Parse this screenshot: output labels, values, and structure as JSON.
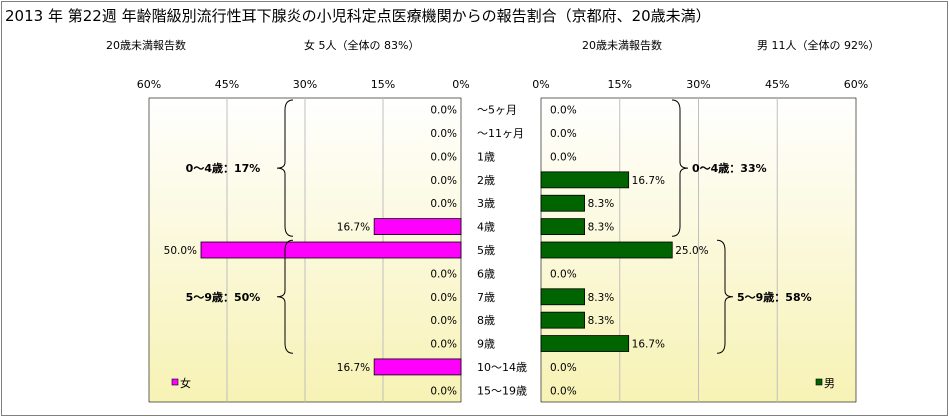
{
  "title": "2013 年 第22週 年齢階級別流行性耳下腺炎の小児科定点医療機関からの報告割合（京都府、20歳未満）",
  "left_header": {
    "label": "20歳未満報告数",
    "summary": "女 5人（全体の 83%）"
  },
  "right_header": {
    "label": "20歳未満報告数",
    "summary": "男 11人（全体の 92%）"
  },
  "colors": {
    "female": "#ff00ff",
    "male": "#006400",
    "plot_bg_top": "#ffffff",
    "plot_bg_bottom": "#f7f2b4",
    "grid": "#bfbfbf"
  },
  "chart_data": [
    {
      "type": "bar",
      "orientation": "horizontal",
      "direction": "right-to-left",
      "categories": [
        "～5ヶ月",
        "～11ヶ月",
        "1歳",
        "2歳",
        "3歳",
        "4歳",
        "5歳",
        "6歳",
        "7歳",
        "8歳",
        "9歳",
        "10～14歳",
        "15～19歳"
      ],
      "series": [
        {
          "name": "女",
          "values": [
            0.0,
            0.0,
            0.0,
            0.0,
            0.0,
            16.7,
            50.0,
            0.0,
            0.0,
            0.0,
            0.0,
            16.7,
            0.0
          ]
        }
      ],
      "value_labels": [
        "0.0%",
        "0.0%",
        "0.0%",
        "0.0%",
        "0.0%",
        "16.7%",
        "50.0%",
        "0.0%",
        "0.0%",
        "0.0%",
        "0.0%",
        "16.7%",
        "0.0%"
      ],
      "xlim": [
        0,
        60
      ],
      "xticks": [
        "60%",
        "45%",
        "30%",
        "15%",
        "0%"
      ],
      "legend": "bottom-left",
      "annotations": [
        {
          "text": "0～4歳：17%",
          "span": [
            "～5ヶ月",
            "4歳"
          ]
        },
        {
          "text": "5～9歳：50%",
          "span": [
            "5歳",
            "9歳"
          ]
        }
      ]
    },
    {
      "type": "bar",
      "orientation": "horizontal",
      "direction": "left-to-right",
      "categories": [
        "～5ヶ月",
        "～11ヶ月",
        "1歳",
        "2歳",
        "3歳",
        "4歳",
        "5歳",
        "6歳",
        "7歳",
        "8歳",
        "9歳",
        "10～14歳",
        "15～19歳"
      ],
      "series": [
        {
          "name": "男",
          "values": [
            0.0,
            0.0,
            0.0,
            16.7,
            8.3,
            8.3,
            25.0,
            0.0,
            8.3,
            8.3,
            16.7,
            0.0,
            0.0
          ]
        }
      ],
      "value_labels": [
        "0.0%",
        "0.0%",
        "0.0%",
        "16.7%",
        "8.3%",
        "8.3%",
        "25.0%",
        "0.0%",
        "8.3%",
        "8.3%",
        "16.7%",
        "0.0%",
        "0.0%"
      ],
      "xlim": [
        0,
        60
      ],
      "xticks": [
        "0%",
        "15%",
        "30%",
        "45%",
        "60%"
      ],
      "legend": "bottom-right",
      "annotations": [
        {
          "text": "0～4歳：33%",
          "span": [
            "～5ヶ月",
            "4歳"
          ]
        },
        {
          "text": "5～9歳：58%",
          "span": [
            "5歳",
            "9歳"
          ]
        }
      ]
    }
  ]
}
